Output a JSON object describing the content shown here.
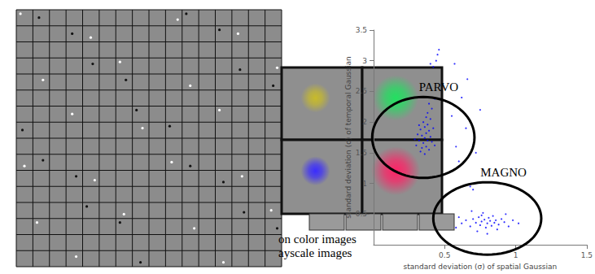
{
  "captions": [
    "on color images",
    "ayscale images"
  ],
  "chart_data": {
    "type": "scatter",
    "xlabel": "standard deviation (σ) of spatial Gaussian",
    "ylabel": "standard deviation (σ) of temporal Gaussian",
    "xlim": [
      0,
      1.5
    ],
    "ylim": [
      0,
      3.5
    ],
    "xticks": [
      0.5,
      1,
      1.5
    ],
    "yticks": [
      0.5,
      1,
      1.5,
      2,
      2.5,
      3,
      3.5
    ],
    "grid": false,
    "color": "#0000ff",
    "marker": "circle",
    "x": [
      0.3,
      0.32,
      0.34,
      0.35,
      0.36,
      0.37,
      0.38,
      0.33,
      0.36,
      0.39,
      0.4,
      0.31,
      0.34,
      0.37,
      0.41,
      0.35,
      0.38,
      0.42,
      0.29,
      0.33,
      0.36,
      0.39,
      0.43,
      0.32,
      0.4,
      0.37,
      0.38,
      0.41,
      0.39,
      0.43,
      0.42,
      0.44,
      0.45,
      0.4,
      0.46,
      0.55,
      0.58,
      0.6,
      0.62,
      0.57,
      0.65,
      0.68,
      0.72,
      0.75,
      0.7,
      0.66,
      0.62,
      0.65,
      0.68,
      0.7,
      0.72,
      0.74,
      0.75,
      0.76,
      0.78,
      0.79,
      0.8,
      0.81,
      0.82,
      0.83,
      0.84,
      0.85,
      0.86,
      0.88,
      0.9,
      0.92,
      0.95,
      0.98,
      0.58,
      0.6,
      0.77,
      0.73,
      0.87,
      0.93,
      1.02,
      0.69,
      0.8,
      0.76
    ],
    "values": [
      1.62,
      1.7,
      1.78,
      1.66,
      1.74,
      1.82,
      1.7,
      1.88,
      1.92,
      1.86,
      1.76,
      1.8,
      1.58,
      1.6,
      1.68,
      2.0,
      1.96,
      1.9,
      1.72,
      1.52,
      1.48,
      1.55,
      1.62,
      1.95,
      2.05,
      2.08,
      2.15,
      2.22,
      2.3,
      2.38,
      2.9,
      3.0,
      3.1,
      2.95,
      3.18,
      2.1,
      1.6,
      1.36,
      2.4,
      2.95,
      1.9,
      0.95,
      1.5,
      2.2,
      0.9,
      2.7,
      0.35,
      0.4,
      0.3,
      0.42,
      0.36,
      0.45,
      0.32,
      0.38,
      0.41,
      0.28,
      0.35,
      0.44,
      0.39,
      0.31,
      0.47,
      0.36,
      0.4,
      0.33,
      0.42,
      0.37,
      0.3,
      0.4,
      0.28,
      0.45,
      0.52,
      0.22,
      0.25,
      0.5,
      0.35,
      0.55,
      0.18,
      0.48
    ],
    "annotations": [
      {
        "text": "PARVO",
        "cx": 0.35,
        "cy": 1.75,
        "rx": 0.36,
        "ry": 0.66
      },
      {
        "text": "MAGNO",
        "cx": 0.8,
        "cy": 0.43,
        "rx": 0.38,
        "ry": 0.59
      }
    ]
  }
}
